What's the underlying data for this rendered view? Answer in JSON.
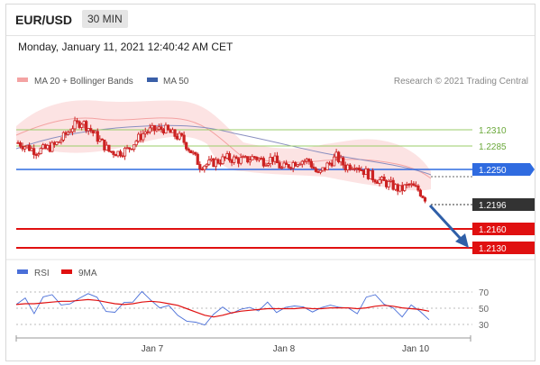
{
  "header": {
    "pair": "EUR/USD",
    "timeframe": "30 MIN"
  },
  "datetime": "Monday, January 11, 2021 12:40:42 AM CET",
  "legend": {
    "bollinger": "MA 20 + Bollinger Bands",
    "ma50": "MA 50",
    "credit": "Research © 2021 Trading Central",
    "rsi": "RSI",
    "rsi_ma": "9MA"
  },
  "colors": {
    "candle": "#cc2222",
    "bollinger": "#f4a3a3",
    "ma50": "#8a8fc0",
    "support_blue": "#2f6be0",
    "resistance_green": "#9acd6a",
    "target_red": "#e01010",
    "arrow": "#2f5fa8",
    "rsi": "#4a6fd8",
    "rsi_ma": "#e01010"
  },
  "chart_data": [
    {
      "type": "candlestick",
      "title": "EUR/USD",
      "timeframe": "30 MIN",
      "x_tick_labels": [
        "Jan 7",
        "Jan 8",
        "Jan 10"
      ],
      "ylim": [
        1.212,
        1.234
      ],
      "close_series_approx": [
        1.2282,
        1.2276,
        1.227,
        1.2273,
        1.2278,
        1.229,
        1.2305,
        1.2312,
        1.23,
        1.2285,
        1.227,
        1.2268,
        1.2272,
        1.2285,
        1.2298,
        1.23,
        1.2302,
        1.2294,
        1.2288,
        1.227,
        1.225,
        1.2252,
        1.2256,
        1.226,
        1.2258,
        1.2257,
        1.2262,
        1.2256,
        1.226,
        1.2245,
        1.2252,
        1.2257,
        1.2256,
        1.2236,
        1.225,
        1.2262,
        1.2248,
        1.2252,
        1.2242,
        1.2233,
        1.2227,
        1.2222,
        1.2215,
        1.2222,
        1.2215,
        1.22
      ],
      "levels": [
        {
          "value": "1.2310",
          "kind": "resistance",
          "color": "#9acd6a"
        },
        {
          "value": "1.2285",
          "kind": "resistance",
          "color": "#9acd6a"
        },
        {
          "value": "1.2250",
          "kind": "pivot",
          "color": "#2f6be0"
        },
        {
          "value": "1.2196",
          "kind": "current",
          "color": "#333333"
        },
        {
          "value": "1.2160",
          "kind": "target",
          "color": "#e01010"
        },
        {
          "value": "1.2130",
          "kind": "target",
          "color": "#e01010"
        }
      ],
      "series": [
        {
          "name": "MA 20 + Bollinger Bands"
        },
        {
          "name": "MA 50"
        }
      ],
      "grid": false
    },
    {
      "type": "line",
      "title": "",
      "series": [
        {
          "name": "RSI",
          "values": [
            55,
            60,
            48,
            62,
            66,
            58,
            52,
            64,
            70,
            60,
            50,
            45,
            55,
            62,
            68,
            60,
            54,
            50,
            44,
            36,
            30,
            34,
            42,
            50,
            48,
            46,
            52,
            50,
            54,
            48,
            52,
            50,
            56,
            44,
            50,
            58,
            48,
            52,
            46,
            60,
            70,
            55,
            48,
            44,
            52,
            46,
            40
          ]
        },
        {
          "name": "9MA",
          "values": [
            55,
            56,
            56,
            57,
            58,
            59,
            59,
            60,
            61,
            60,
            58,
            56,
            55,
            56,
            58,
            59,
            58,
            56,
            54,
            50,
            46,
            42,
            40,
            42,
            45,
            47,
            48,
            49,
            50,
            50,
            50,
            50,
            51,
            50,
            50,
            51,
            51,
            51,
            50,
            51,
            53,
            54,
            53,
            51,
            50,
            49,
            47
          ]
        }
      ],
      "y_ticks": [
        "70",
        "50",
        "30"
      ],
      "ylim": [
        20,
        80
      ]
    }
  ]
}
